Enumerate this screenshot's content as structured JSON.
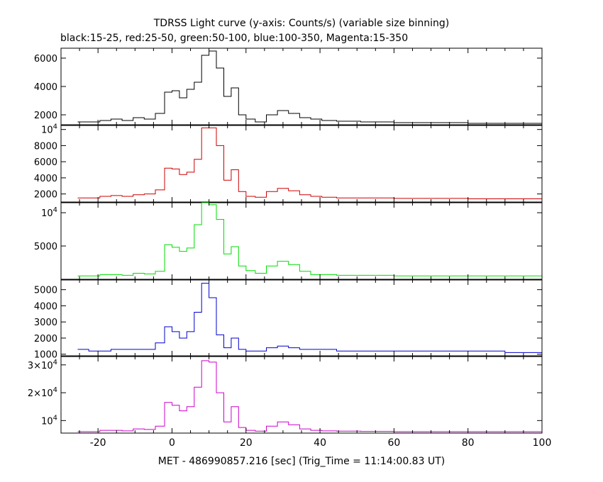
{
  "title_line1": "TDRSS Light curve (y-axis: Counts/s) (variable size binning)",
  "title_line2": "black:15-25, red:25-50, green:50-100, blue:100-350, Magenta:15-350",
  "xlabel": "MET - 486990857.216 [sec] (Trig_Time = 11:14:00.83 UT)",
  "xticks": [
    "-20",
    "0",
    "20",
    "40",
    "60",
    "80",
    "100"
  ],
  "chart_data": {
    "type": "line",
    "drawstyle": "steps-mid",
    "title": "TDRSS Light curve (y-axis: Counts/s) (variable size binning)",
    "subtitle": "black:15-25, red:25-50, green:50-100, blue:100-350, Magenta:15-350",
    "xlabel": "MET - 486990857.216 [sec] (Trig_Time = 11:14:00.83 UT)",
    "xlim": [
      -30,
      100
    ],
    "x": [
      -24,
      -21,
      -18,
      -15,
      -12,
      -9,
      -6,
      -3,
      -1,
      1,
      3,
      5,
      7,
      9,
      11,
      13,
      15,
      17,
      19,
      21,
      24,
      27,
      30,
      33,
      36,
      39,
      42,
      47,
      55,
      65,
      75,
      85,
      95
    ],
    "panels": [
      {
        "name": "black:15-25",
        "color": "#000000",
        "ylim": [
          1300,
          6700
        ],
        "yticks": [
          {
            "value": 2000,
            "label": "2000"
          },
          {
            "value": 4000,
            "label": "4000"
          },
          {
            "value": 6000,
            "label": "6000"
          }
        ],
        "values": [
          1500,
          1500,
          1600,
          1700,
          1600,
          1800,
          1700,
          2100,
          3600,
          3700,
          3200,
          3800,
          4300,
          6200,
          6500,
          5300,
          3300,
          3900,
          2000,
          1700,
          1500,
          2000,
          2300,
          2100,
          1800,
          1700,
          1600,
          1550,
          1500,
          1450,
          1450,
          1400,
          1400
        ]
      },
      {
        "name": "red:25-50",
        "color": "#cc0000",
        "ylim": [
          1000,
          10500
        ],
        "yticks": [
          {
            "value": 2000,
            "label": "2000"
          },
          {
            "value": 4000,
            "label": "4000"
          },
          {
            "value": 6000,
            "label": "6000"
          },
          {
            "value": 8000,
            "label": "8000"
          },
          {
            "value": 10000,
            "label": "10",
            "sup": "4"
          }
        ],
        "values": [
          1500,
          1500,
          1700,
          1800,
          1700,
          1900,
          2000,
          2500,
          5200,
          5100,
          4400,
          4700,
          6300,
          10200,
          10200,
          8000,
          3700,
          5000,
          2300,
          1700,
          1600,
          2300,
          2700,
          2400,
          1900,
          1700,
          1600,
          1500,
          1500,
          1450,
          1450,
          1400,
          1400
        ]
      },
      {
        "name": "green:50-100",
        "color": "#00dd00",
        "ylim": [
          0,
          11500
        ],
        "yticks": [
          {
            "value": 5000,
            "label": "5000"
          },
          {
            "value": 10000,
            "label": "10",
            "sup": "4"
          }
        ],
        "values": [
          500,
          500,
          700,
          700,
          600,
          900,
          800,
          1200,
          5200,
          4800,
          4200,
          4700,
          8200,
          11500,
          11200,
          9000,
          3800,
          4900,
          2000,
          1300,
          900,
          2000,
          2700,
          2200,
          1200,
          700,
          700,
          600,
          600,
          500,
          500,
          500,
          500
        ]
      },
      {
        "name": "blue:100-350",
        "color": "#0000cc",
        "ylim": [
          900,
          5600
        ],
        "yticks": [
          {
            "value": 1000,
            "label": "1000"
          },
          {
            "value": 2000,
            "label": "2000"
          },
          {
            "value": 3000,
            "label": "3000"
          },
          {
            "value": 4000,
            "label": "4000"
          },
          {
            "value": 5000,
            "label": "5000"
          }
        ],
        "values": [
          1300,
          1200,
          1200,
          1300,
          1300,
          1300,
          1300,
          1700,
          2700,
          2400,
          2000,
          2400,
          3600,
          5400,
          4500,
          2200,
          1400,
          2000,
          1300,
          1200,
          1200,
          1400,
          1500,
          1400,
          1300,
          1300,
          1300,
          1200,
          1200,
          1200,
          1200,
          1200,
          1100
        ]
      },
      {
        "name": "Magenta:15-350",
        "color": "#cc00cc",
        "ylim": [
          5500,
          33000
        ],
        "yticks": [
          {
            "value": 10000,
            "label": "10",
            "sup": "4"
          },
          {
            "value": 20000,
            "label": "2×10",
            "sup": "4"
          },
          {
            "value": 30000,
            "label": "3×10",
            "sup": "4"
          }
        ],
        "values": [
          6000,
          6000,
          6500,
          6500,
          6300,
          7000,
          6800,
          8000,
          16500,
          15500,
          13500,
          15000,
          22000,
          31500,
          31000,
          20000,
          9500,
          15000,
          7500,
          6500,
          6200,
          8000,
          9500,
          8500,
          7000,
          6500,
          6300,
          6200,
          6100,
          6000,
          6000,
          6000,
          6000
        ]
      }
    ]
  }
}
